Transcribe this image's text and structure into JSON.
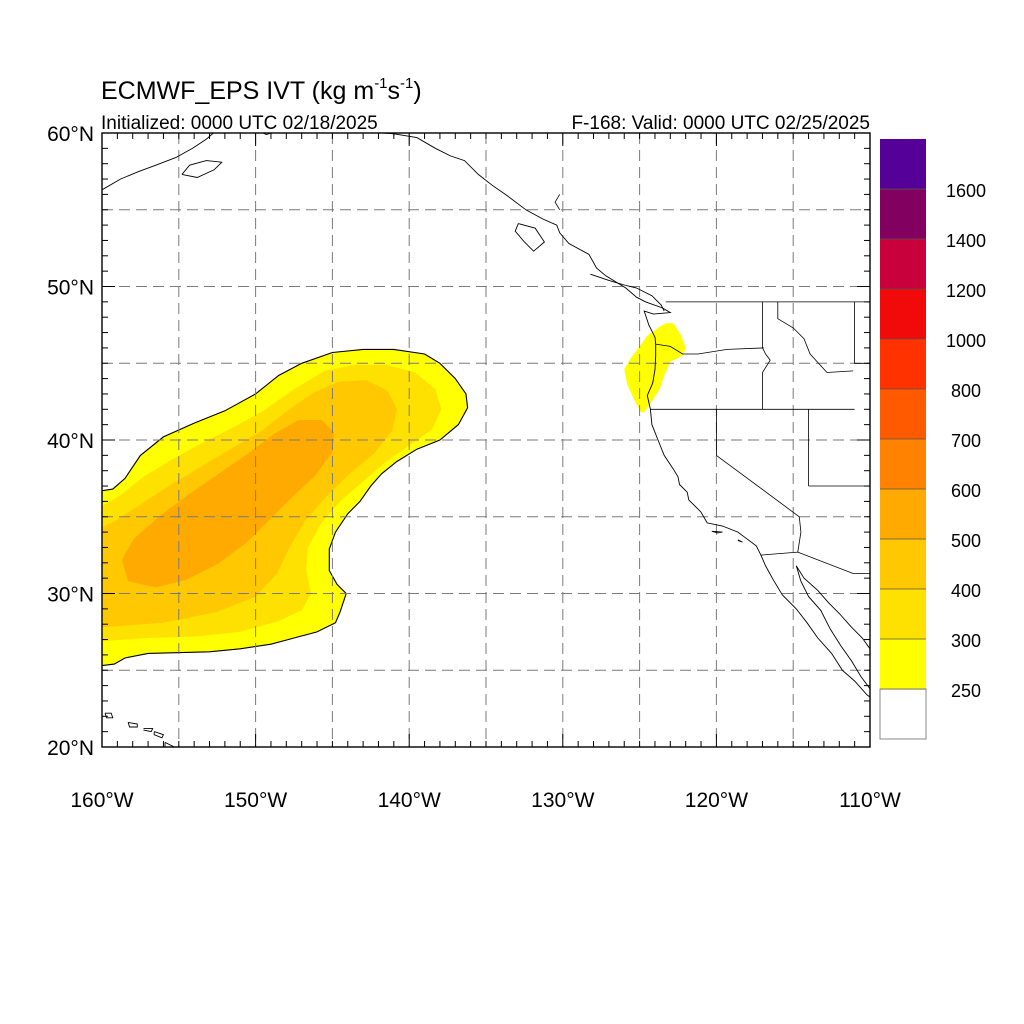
{
  "title": {
    "main": "ECMWF_EPS IVT (kg m",
    "exp1": "-1",
    "mid": "s",
    "exp2": "-1",
    "close": ")"
  },
  "subtitle_left": "Initialized: 0000 UTC 02/18/2025",
  "subtitle_right": "F-168: Valid: 0000 UTC 02/25/2025",
  "colors": {
    "c250": "#ffff00",
    "c300": "#ffe100",
    "c400": "#ffc800",
    "c500": "#ffaa00",
    "c600": "#ff8200",
    "c700": "#ff5a00",
    "c800": "#ff3200",
    "c1000": "#f00a0a",
    "c1200": "#c8003c",
    "c1400": "#82005f",
    "c1600": "#550096",
    "land": "#ffffff",
    "coast": "#000000",
    "grid": "#7a7a7a"
  },
  "chart_data": {
    "type": "heatmap",
    "projection": "cylindrical-equidistant",
    "xlim": [
      -160,
      -110
    ],
    "ylim": [
      20,
      60
    ],
    "x_ticks": [
      {
        "value": -160,
        "label": "160°W"
      },
      {
        "value": -150,
        "label": "150°W"
      },
      {
        "value": -140,
        "label": "140°W"
      },
      {
        "value": -130,
        "label": "130°W"
      },
      {
        "value": -120,
        "label": "120°W"
      },
      {
        "value": -110,
        "label": "110°W"
      }
    ],
    "y_ticks": [
      {
        "value": 20,
        "label": "20°N"
      },
      {
        "value": 30,
        "label": "30°N"
      },
      {
        "value": 40,
        "label": "40°N"
      },
      {
        "value": 50,
        "label": "50°N"
      },
      {
        "value": 60,
        "label": "60°N"
      }
    ],
    "grid": true,
    "grid_spacing_deg": 5,
    "colorbar": {
      "placement": "right",
      "levels": [
        {
          "label": "",
          "color": "#ffffff"
        },
        {
          "label": "250",
          "color": "#ffff00"
        },
        {
          "label": "300",
          "color": "#ffe100"
        },
        {
          "label": "400",
          "color": "#ffc800"
        },
        {
          "label": "500",
          "color": "#ffaa00"
        },
        {
          "label": "600",
          "color": "#ff8200"
        },
        {
          "label": "700",
          "color": "#ff5a00"
        },
        {
          "label": "800",
          "color": "#ff3200"
        },
        {
          "label": "1000",
          "color": "#f00a0a"
        },
        {
          "label": "1200",
          "color": "#c8003c"
        },
        {
          "label": "1400",
          "color": "#82005f"
        },
        {
          "label": "1600",
          "color": "#550096"
        }
      ]
    },
    "ivt_regions": [
      {
        "name": "250",
        "color": "#ffff00",
        "outline": true,
        "polygon": [
          [
            -160,
            25.3
          ],
          [
            -159.2,
            25.4
          ],
          [
            -158.5,
            25.8
          ],
          [
            -157,
            26.1
          ],
          [
            -153,
            26.2
          ],
          [
            -151,
            26.4
          ],
          [
            -149,
            26.7
          ],
          [
            -147.5,
            27.1
          ],
          [
            -146,
            27.5
          ],
          [
            -144.8,
            28.1
          ],
          [
            -144.5,
            28.8
          ],
          [
            -144.1,
            30
          ],
          [
            -144.7,
            30.6
          ],
          [
            -145.2,
            31.5
          ],
          [
            -145.2,
            32.9
          ],
          [
            -144.8,
            34
          ],
          [
            -144,
            35.2
          ],
          [
            -143.2,
            36
          ],
          [
            -142.5,
            37
          ],
          [
            -141.8,
            37.8
          ],
          [
            -140.8,
            38.6
          ],
          [
            -139.5,
            39.4
          ],
          [
            -138,
            40
          ],
          [
            -136.8,
            41
          ],
          [
            -136.2,
            42.1
          ],
          [
            -136.3,
            43
          ],
          [
            -137,
            44
          ],
          [
            -138,
            45
          ],
          [
            -139,
            45.6
          ],
          [
            -141,
            45.9
          ],
          [
            -143,
            45.9
          ],
          [
            -145,
            45.7
          ],
          [
            -147,
            45
          ],
          [
            -148.5,
            44.2
          ],
          [
            -150,
            43
          ],
          [
            -152,
            41.9
          ],
          [
            -154,
            41.1
          ],
          [
            -156,
            40.2
          ],
          [
            -157.5,
            39
          ],
          [
            -158.5,
            37.5
          ],
          [
            -159.3,
            36.8
          ],
          [
            -160,
            36.7
          ]
        ]
      },
      {
        "name": "cascadia-250",
        "color": "#ffff00",
        "outline": false,
        "polygon": [
          [
            -124.7,
            41.8
          ],
          [
            -124.3,
            42.4
          ],
          [
            -123.7,
            43.3
          ],
          [
            -123.4,
            44.2
          ],
          [
            -123,
            45.1
          ],
          [
            -122.2,
            45.5
          ],
          [
            -122,
            46
          ],
          [
            -122.3,
            46.8
          ],
          [
            -122.8,
            47.6
          ],
          [
            -123.3,
            47.6
          ],
          [
            -123.8,
            47.3
          ],
          [
            -124.5,
            46.8
          ],
          [
            -125,
            46.1
          ],
          [
            -125.6,
            45.3
          ],
          [
            -126,
            44.6
          ],
          [
            -125.8,
            43.6
          ],
          [
            -125.3,
            42.5
          ],
          [
            -124.9,
            41.8
          ]
        ]
      },
      {
        "name": "300",
        "color": "#ffe100",
        "outline": false,
        "polygon": [
          [
            -160,
            26.9
          ],
          [
            -157,
            27.1
          ],
          [
            -154,
            27.2
          ],
          [
            -151,
            27.5
          ],
          [
            -148.5,
            28.2
          ],
          [
            -147,
            28.9
          ],
          [
            -146.4,
            30
          ],
          [
            -146.7,
            31.5
          ],
          [
            -146.6,
            33
          ],
          [
            -145.7,
            34.6
          ],
          [
            -144.5,
            36
          ],
          [
            -143,
            37.3
          ],
          [
            -141.5,
            38.6
          ],
          [
            -139.9,
            39.7
          ],
          [
            -138.5,
            40.7
          ],
          [
            -137.9,
            42
          ],
          [
            -138.3,
            43.3
          ],
          [
            -139.6,
            44.4
          ],
          [
            -141.5,
            44.9
          ],
          [
            -143.5,
            44.9
          ],
          [
            -145.5,
            44.5
          ],
          [
            -147.5,
            43.3
          ],
          [
            -149.5,
            41.9
          ],
          [
            -151.5,
            40.8
          ],
          [
            -153.5,
            39.8
          ],
          [
            -155.5,
            38.7
          ],
          [
            -157.3,
            37.6
          ],
          [
            -158.8,
            36.4
          ],
          [
            -160,
            35.7
          ]
        ]
      },
      {
        "name": "400",
        "color": "#ffc800",
        "outline": false,
        "polygon": [
          [
            -160,
            27.8
          ],
          [
            -156,
            28.1
          ],
          [
            -152.5,
            28.8
          ],
          [
            -150,
            29.8
          ],
          [
            -148.6,
            31.3
          ],
          [
            -147.8,
            33
          ],
          [
            -146.8,
            34.7
          ],
          [
            -145.5,
            36.2
          ],
          [
            -144,
            37.7
          ],
          [
            -142.3,
            39.1
          ],
          [
            -141.1,
            40.6
          ],
          [
            -140.8,
            42
          ],
          [
            -141.4,
            43.2
          ],
          [
            -142.8,
            43.9
          ],
          [
            -144.6,
            43.8
          ],
          [
            -146.2,
            43.1
          ],
          [
            -147.8,
            42
          ],
          [
            -149.6,
            40.6
          ],
          [
            -151.5,
            39.5
          ],
          [
            -153.5,
            38.3
          ],
          [
            -155.5,
            37.1
          ],
          [
            -157.5,
            35.8
          ],
          [
            -159.2,
            34.7
          ],
          [
            -160,
            34.3
          ]
        ]
      },
      {
        "name": "500",
        "color": "#ffaa00",
        "outline": false,
        "polygon": [
          [
            -158.3,
            30.8
          ],
          [
            -156.5,
            30.4
          ],
          [
            -154.5,
            30.9
          ],
          [
            -152.5,
            31.9
          ],
          [
            -150.6,
            33.3
          ],
          [
            -149,
            34.9
          ],
          [
            -147.6,
            36.3
          ],
          [
            -146.1,
            37.7
          ],
          [
            -145,
            39.2
          ],
          [
            -144.9,
            40.5
          ],
          [
            -145.7,
            41.3
          ],
          [
            -147.2,
            41.3
          ],
          [
            -148.8,
            40.4
          ],
          [
            -150.5,
            39.1
          ],
          [
            -152.4,
            37.8
          ],
          [
            -154.3,
            36.5
          ],
          [
            -156.3,
            35
          ],
          [
            -157.9,
            33.6
          ],
          [
            -158.7,
            32.2
          ]
        ]
      }
    ],
    "annotations": []
  }
}
